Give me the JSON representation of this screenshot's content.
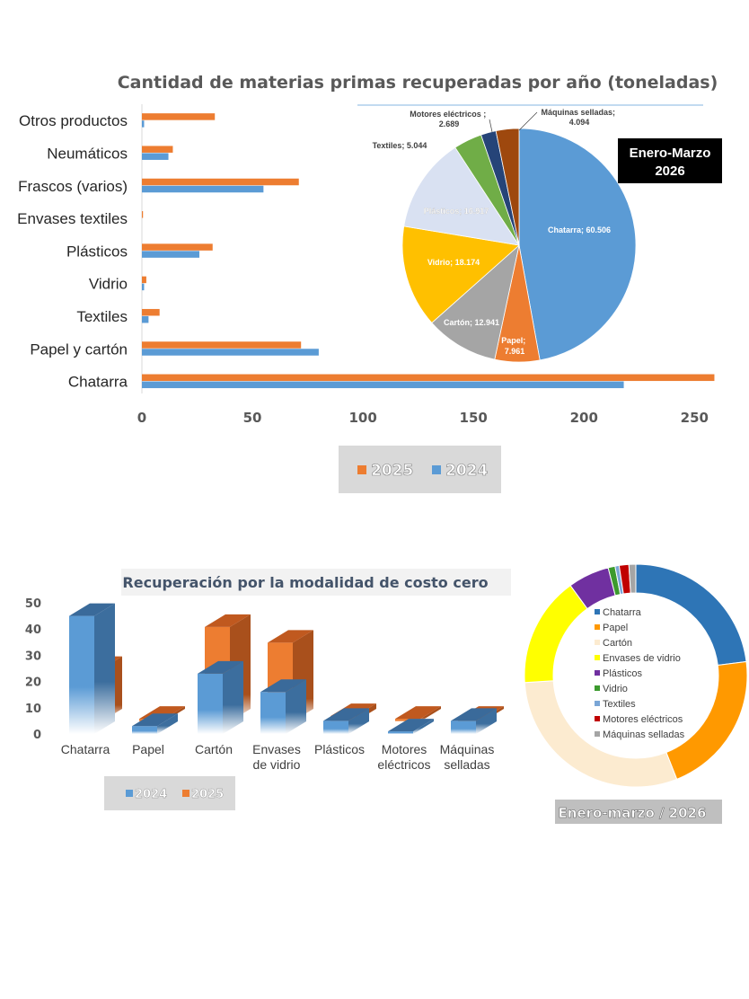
{
  "chart_data": [
    {
      "type": "bar",
      "orientation": "horizontal",
      "title": "Cantidad de materias primas recuperadas por año (toneladas)",
      "categories": [
        "Otros productos",
        "Neumáticos",
        "Frascos (varios)",
        "Envases textiles",
        "Plásticos",
        "Vidrio",
        "Textiles",
        "Papel y cartón",
        "Chatarra"
      ],
      "series": [
        {
          "name": "2025",
          "color": "#ED7D31",
          "values": [
            33,
            14,
            71,
            0.5,
            32,
            2,
            8,
            72,
            259
          ]
        },
        {
          "name": "2024",
          "color": "#5B9BD5",
          "values": [
            1,
            12,
            55,
            0,
            26,
            1,
            3,
            80,
            218
          ]
        }
      ],
      "xlim": [
        0,
        260
      ],
      "xticks": [
        "0",
        "50",
        "100",
        "150",
        "200",
        "250"
      ],
      "legend": {
        "position": "bottom",
        "labels": [
          "2025",
          "2024"
        ]
      }
    },
    {
      "type": "pie",
      "title": "",
      "badge": [
        "Enero-Marzo",
        "2026"
      ],
      "slices": [
        {
          "label": "Chatarra; 60.506",
          "value": 60.506,
          "color": "#5B9BD5"
        },
        {
          "label": "Papel; 7.961",
          "value": 7.961,
          "color": "#ED7D31"
        },
        {
          "label": "Cartón; 12.941",
          "value": 12.941,
          "color": "#A5A5A5"
        },
        {
          "label": "Vidrio; 18.174",
          "value": 18.174,
          "color": "#FFC000"
        },
        {
          "label": "Plásticos; 16.917",
          "value": 16.917,
          "color": "#D9E1F2"
        },
        {
          "label": "Textiles; 5.044",
          "value": 5.044,
          "color": "#70AD47"
        },
        {
          "label": "Motores eléctricos ; 2.689",
          "value": 2.689,
          "color": "#264478"
        },
        {
          "label": "Máquinas selladas; 4.094",
          "value": 4.094,
          "color": "#9E480E"
        }
      ]
    },
    {
      "type": "bar",
      "style": "3d",
      "title": "Recuperación por la modalidad de costo cero",
      "categories": [
        "Chatarra",
        "Papel",
        "Cartón",
        "Envases de vidrio",
        "Plásticos",
        "Motores eléctricos",
        "Máquinas selladas"
      ],
      "series": [
        {
          "name": "2024",
          "color": "#5B9BD5",
          "values": [
            45,
            3,
            23,
            16,
            5,
            1,
            5
          ]
        },
        {
          "name": "2025",
          "color": "#ED7D31",
          "values": [
            20,
            1,
            36,
            30,
            2,
            1,
            1
          ]
        }
      ],
      "ylim": [
        0,
        50
      ],
      "yticks": [
        "0",
        "10",
        "20",
        "30",
        "40",
        "50"
      ],
      "legend": {
        "position": "bottom",
        "labels": [
          "2024",
          "2025"
        ]
      }
    },
    {
      "type": "pie",
      "style": "doughnut",
      "caption": "Enero-marzo / 2026",
      "slices": [
        {
          "label": "Chatarra",
          "value": 23,
          "color": "#2E75B6"
        },
        {
          "label": "Papel",
          "value": 21,
          "color": "#FF9900"
        },
        {
          "label": "Cartón",
          "value": 30,
          "color": "#FCEBD0"
        },
        {
          "label": "Envases de vidrio",
          "value": 16,
          "color": "#FFFF00"
        },
        {
          "label": "Plásticos",
          "value": 6,
          "color": "#7030A0"
        },
        {
          "label": "Vidrio",
          "value": 1,
          "color": "#3C9A2E"
        },
        {
          "label": "Textiles",
          "value": 0.6,
          "color": "#7AA6D6"
        },
        {
          "label": "Motores eléctricos",
          "value": 1.4,
          "color": "#C00000"
        },
        {
          "label": "Máquinas selladas",
          "value": 1,
          "color": "#A5A5A5"
        }
      ]
    }
  ]
}
